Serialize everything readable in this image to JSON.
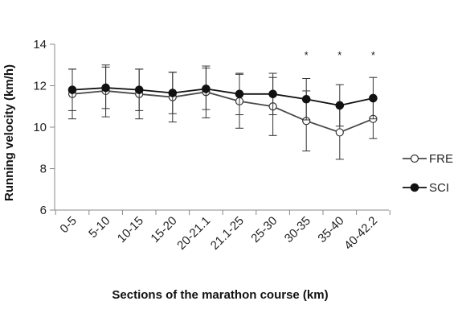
{
  "chart_data": {
    "type": "line",
    "xlabel": "Sections of the marathon course (km)",
    "ylabel": "Running velocity (km/h)",
    "categories": [
      "0-5",
      "5-10",
      "10-15",
      "15-20",
      "20-21.1",
      "21.1-25",
      "25-30",
      "30-35",
      "35-40",
      "40-42.2"
    ],
    "ylim": [
      6,
      14
    ],
    "yticks": [
      6,
      8,
      10,
      12,
      14
    ],
    "grid": false,
    "legend_position": "right",
    "series": [
      {
        "name": "FRE",
        "marker": "open-circle",
        "color": "#4a4a4a",
        "values": [
          11.6,
          11.75,
          11.6,
          11.45,
          11.7,
          11.25,
          11.0,
          10.3,
          9.75,
          10.4
        ],
        "error": [
          1.2,
          1.25,
          1.2,
          1.2,
          1.25,
          1.3,
          1.4,
          1.45,
          1.3,
          0.95
        ]
      },
      {
        "name": "SCI",
        "marker": "filled-circle",
        "color": "#111111",
        "values": [
          11.8,
          11.9,
          11.8,
          11.65,
          11.85,
          11.6,
          11.6,
          11.35,
          11.05,
          11.4
        ],
        "error": [
          1.0,
          1.0,
          1.0,
          1.0,
          1.0,
          1.0,
          1.0,
          1.0,
          1.0,
          1.0
        ]
      }
    ],
    "annotations": [
      {
        "category": "30-35",
        "text": "*"
      },
      {
        "category": "35-40",
        "text": "*"
      },
      {
        "category": "40-42.2",
        "text": "*"
      }
    ]
  }
}
